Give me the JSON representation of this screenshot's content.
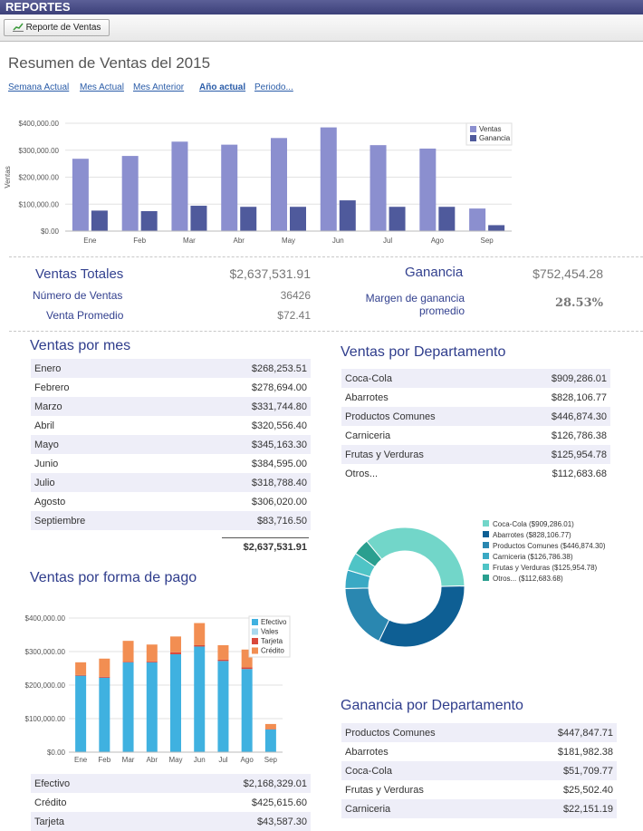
{
  "app": {
    "title": "REPORTES"
  },
  "toolbar": {
    "button_label": "Reporte de Ventas"
  },
  "page": {
    "title": "Resumen de Ventas del 2015"
  },
  "nav": [
    {
      "label": "Semana Actual",
      "active": false
    },
    {
      "label": "Mes Actual",
      "active": false
    },
    {
      "label": "Mes Anterior",
      "active": false
    },
    {
      "label": "Año actual",
      "active": true
    },
    {
      "label": "Periodo...",
      "active": false
    }
  ],
  "summary": {
    "ventas_totales_label": "Ventas Totales",
    "ventas_totales_value": "$2,637,531.91",
    "numero_ventas_label": "Número de Ventas",
    "numero_ventas_value": "36426",
    "venta_promedio_label": "Venta Promedio",
    "venta_promedio_value": "$72.41",
    "ganancia_label": "Ganancia",
    "ganancia_value": "$752,454.28",
    "margen_label_line1": "Margen de ganancia",
    "margen_label_line2": "promedio",
    "margen_value": "28.53%"
  },
  "ventas_por_mes": {
    "title": "Ventas por mes",
    "rows": [
      {
        "label": "Enero",
        "value": "$268,253.51"
      },
      {
        "label": "Febrero",
        "value": "$278,694.00"
      },
      {
        "label": "Marzo",
        "value": "$331,744.80"
      },
      {
        "label": "Abril",
        "value": "$320,556.40"
      },
      {
        "label": "Mayo",
        "value": "$345,163.30"
      },
      {
        "label": "Junio",
        "value": "$384,595.00"
      },
      {
        "label": "Julio",
        "value": "$318,788.40"
      },
      {
        "label": "Agosto",
        "value": "$306,020.00"
      },
      {
        "label": "Septiembre",
        "value": "$83,716.50"
      }
    ],
    "total": "$2,637,531.91"
  },
  "ventas_por_departamento": {
    "title": "Ventas por Departamento",
    "rows": [
      {
        "label": "Coca-Cola",
        "value": "$909,286.01"
      },
      {
        "label": "Abarrotes",
        "value": "$828,106.77"
      },
      {
        "label": "Productos Comunes",
        "value": "$446,874.30"
      },
      {
        "label": "Carniceria",
        "value": "$126,786.38"
      },
      {
        "label": "Frutas y Verduras",
        "value": "$125,954.78"
      },
      {
        "label": "Otros...",
        "value": "$112,683.68"
      }
    ]
  },
  "ventas_por_forma_pago": {
    "title": "Ventas por forma de pago",
    "rows": [
      {
        "label": "Efectivo",
        "value": "$2,168,329.01"
      },
      {
        "label": "Crédito",
        "value": "$425,615.60"
      },
      {
        "label": "Tarjeta",
        "value": "$43,587.30"
      }
    ]
  },
  "ganancia_por_departamento": {
    "title": "Ganancia por Departamento",
    "rows": [
      {
        "label": "Productos Comunes",
        "value": "$447,847.71"
      },
      {
        "label": "Abarrotes",
        "value": "$181,982.38"
      },
      {
        "label": "Coca-Cola",
        "value": "$51,709.77"
      },
      {
        "label": "Frutas y Verduras",
        "value": "$25,502.40"
      },
      {
        "label": "Carniceria",
        "value": "$22,151.19"
      }
    ]
  },
  "chart_data": [
    {
      "type": "bar",
      "ylabel": "Ventas",
      "categories": [
        "Ene",
        "Feb",
        "Mar",
        "Abr",
        "May",
        "Jun",
        "Jul",
        "Ago",
        "Sep"
      ],
      "series": [
        {
          "name": "Ventas",
          "color": "#8b8fcf",
          "values": [
            268253.51,
            278694.0,
            331744.8,
            320556.4,
            345163.3,
            384595.0,
            318788.4,
            306020.0,
            83716.5
          ]
        },
        {
          "name": "Ganancia",
          "color": "#4f5a9c",
          "values": [
            76000,
            74000,
            94000,
            90000,
            90000,
            114000,
            90000,
            90000,
            22000
          ]
        }
      ],
      "yticks": [
        "$0.00",
        "$100,000.00",
        "$200,000.00",
        "$300,000.00",
        "$400,000.00"
      ],
      "ylim": [
        0,
        400000
      ],
      "legend": "top-right",
      "grid": true
    },
    {
      "type": "pie",
      "legend": "right",
      "slices": [
        {
          "label": "Coca-Cola ($909,286.01)",
          "value": 909286.01,
          "color": "#72d6c9"
        },
        {
          "label": "Abarrotes ($828,106.77)",
          "value": 828106.77,
          "color": "#0e5f94"
        },
        {
          "label": "Productos Comunes ($446,874.30)",
          "value": 446874.3,
          "color": "#2a87b0"
        },
        {
          "label": "Carniceria ($126,786.38)",
          "value": 126786.38,
          "color": "#3aa9c4"
        },
        {
          "label": "Frutas y Verduras ($125,954.78)",
          "value": 125954.78,
          "color": "#4fc4c6"
        },
        {
          "label": "Otros... ($112,683.68)",
          "value": 112683.68,
          "color": "#2a9f8f"
        }
      ]
    },
    {
      "type": "bar",
      "stacked": true,
      "categories": [
        "Ene",
        "Feb",
        "Mar",
        "Abr",
        "May",
        "Jun",
        "Jul",
        "Ago",
        "Sep"
      ],
      "series": [
        {
          "name": "Efectivo",
          "color": "#3fb1e0",
          "values": [
            228000,
            222000,
            268000,
            268000,
            292000,
            315000,
            272000,
            248000,
            68000
          ]
        },
        {
          "name": "Vales",
          "color": "#a9d8ee",
          "values": [
            0,
            0,
            0,
            0,
            0,
            0,
            0,
            0,
            0
          ]
        },
        {
          "name": "Tarjeta",
          "color": "#d9483b",
          "values": [
            2000,
            3000,
            2000,
            3000,
            6000,
            4000,
            4000,
            5000,
            1000
          ]
        },
        {
          "name": "Crédito",
          "color": "#f28e52",
          "values": [
            38000,
            54000,
            62000,
            50000,
            47000,
            66000,
            43000,
            53000,
            15000
          ]
        }
      ],
      "yticks": [
        "$0.00",
        "$100,000.00",
        "$200,000.00",
        "$300,000.00",
        "$400,000.00"
      ],
      "ylim": [
        0,
        400000
      ],
      "legend": "top-right",
      "grid": true
    }
  ]
}
